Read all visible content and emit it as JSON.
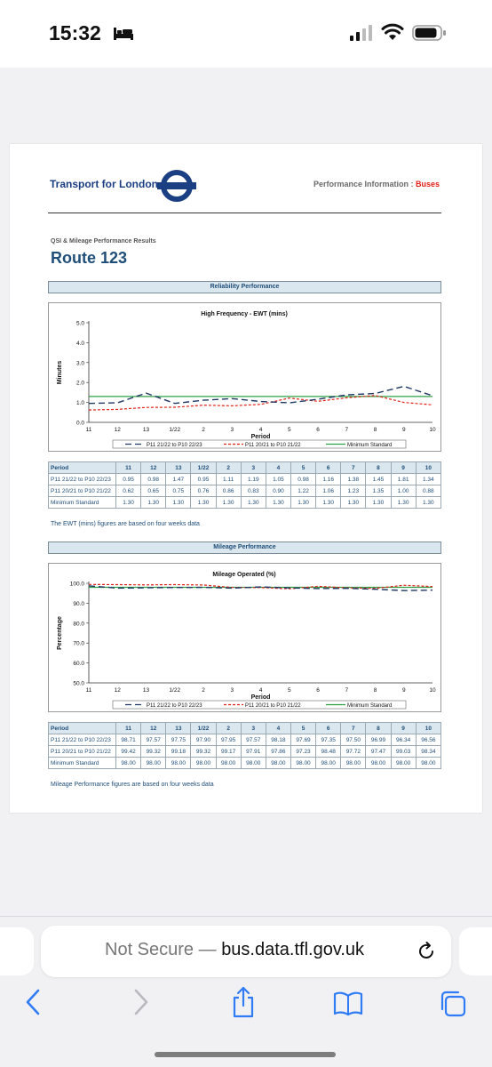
{
  "status_bar": {
    "time": "15:32"
  },
  "document": {
    "org_name": "Transport for London",
    "perf_info_prefix": "Performance Information : ",
    "perf_info_highlight": "Buses",
    "subtitle": "QSI & Mileage Performance Results",
    "route_title": "Route 123",
    "reliability_section": "Reliability Performance",
    "mileage_section": "Mileage Performance",
    "ewt_note": "The EWT (mins) figures are based on four weeks data",
    "mileage_note": "Mileage Performance figures are based on four weeks data"
  },
  "table_headers": [
    "Period",
    "11",
    "12",
    "13",
    "1/22",
    "2",
    "3",
    "4",
    "5",
    "6",
    "7",
    "8",
    "9",
    "10"
  ],
  "colors": {
    "series1": "#1f3864",
    "series2": "#e32017",
    "series3": "#2ea043",
    "tfl_blue": "#1b3f83",
    "accent_red": "#e32017"
  },
  "chart_data": [
    {
      "type": "line",
      "title": "High Frequency - EWT (mins)",
      "xlabel": "Period",
      "ylabel": "Minutes",
      "x": [
        "11",
        "12",
        "13",
        "1/22",
        "2",
        "3",
        "4",
        "5",
        "6",
        "7",
        "8",
        "9",
        "10"
      ],
      "ylim": [
        0,
        5
      ],
      "yticks": [
        "0.0",
        "1.0",
        "2.0",
        "3.0",
        "4.0",
        "5.0"
      ],
      "legend": "bottom",
      "grid": false,
      "series": [
        {
          "name": "P11 21/22 to P10 22/23",
          "style": "dashed",
          "color": "#1f3864",
          "values": [
            0.95,
            0.98,
            1.47,
            0.95,
            1.11,
            1.19,
            1.05,
            0.98,
            1.16,
            1.38,
            1.45,
            1.81,
            1.34
          ]
        },
        {
          "name": "P11 20/21 to P10 21/22",
          "style": "dotted",
          "color": "#e32017",
          "values": [
            0.62,
            0.65,
            0.75,
            0.76,
            0.86,
            0.83,
            0.9,
            1.22,
            1.06,
            1.23,
            1.35,
            1.0,
            0.88
          ]
        },
        {
          "name": "Minimum Standard",
          "style": "solid",
          "color": "#2ea043",
          "values": [
            1.3,
            1.3,
            1.3,
            1.3,
            1.3,
            1.3,
            1.3,
            1.3,
            1.3,
            1.3,
            1.3,
            1.3,
            1.3
          ]
        }
      ],
      "table": [
        {
          "label": "P11 21/22 to P10 22/23",
          "values": [
            "0.95",
            "0.98",
            "1.47",
            "0.95",
            "1.11",
            "1.19",
            "1.05",
            "0.98",
            "1.16",
            "1.38",
            "1.45",
            "1.81",
            "1.34"
          ]
        },
        {
          "label": "P11 20/21 to P10 21/22",
          "values": [
            "0.62",
            "0.65",
            "0.75",
            "0.76",
            "0.86",
            "0.83",
            "0.90",
            "1.22",
            "1.06",
            "1.23",
            "1.35",
            "1.00",
            "0.88"
          ]
        },
        {
          "label": "Minimum Standard",
          "values": [
            "1.30",
            "1.30",
            "1.30",
            "1.30",
            "1.30",
            "1.30",
            "1.30",
            "1.30",
            "1.30",
            "1.30",
            "1.30",
            "1.30",
            "1.30"
          ]
        }
      ]
    },
    {
      "type": "line",
      "title": "Mileage Operated (%)",
      "xlabel": "Period",
      "ylabel": "Percentage",
      "x": [
        "11",
        "12",
        "13",
        "1/22",
        "2",
        "3",
        "4",
        "5",
        "6",
        "7",
        "8",
        "9",
        "10"
      ],
      "ylim": [
        50,
        100
      ],
      "yticks": [
        "50.0",
        "60.0",
        "70.0",
        "80.0",
        "90.0",
        "100.0"
      ],
      "legend": "bottom",
      "grid": false,
      "series": [
        {
          "name": "P11 21/22 to P10 22/23",
          "style": "dashed",
          "color": "#1f3864",
          "values": [
            98.71,
            97.57,
            97.75,
            97.9,
            97.95,
            97.57,
            98.18,
            97.69,
            97.35,
            97.5,
            96.99,
            96.34,
            96.56
          ]
        },
        {
          "name": "P11 20/21 to P10 21/22",
          "style": "dotted",
          "color": "#e32017",
          "values": [
            99.42,
            99.32,
            99.18,
            99.32,
            99.17,
            97.91,
            97.86,
            97.23,
            98.48,
            97.72,
            97.47,
            99.03,
            98.34
          ]
        },
        {
          "name": "Minimum Standard",
          "style": "solid",
          "color": "#2ea043",
          "values": [
            98.0,
            98.0,
            98.0,
            98.0,
            98.0,
            98.0,
            98.0,
            98.0,
            98.0,
            98.0,
            98.0,
            98.0,
            98.0
          ]
        }
      ],
      "table": [
        {
          "label": "P11 21/22 to P10 22/23",
          "values": [
            "98.71",
            "97.57",
            "97.75",
            "97.90",
            "97.95",
            "97.57",
            "98.18",
            "97.69",
            "97.35",
            "97.50",
            "96.99",
            "96.34",
            "96.56"
          ]
        },
        {
          "label": "P11 20/21 to P10 21/22",
          "values": [
            "99.42",
            "99.32",
            "99.18",
            "99.32",
            "99.17",
            "97.91",
            "97.86",
            "97.23",
            "98.48",
            "97.72",
            "97.47",
            "99.03",
            "98.34"
          ]
        },
        {
          "label": "Minimum Standard",
          "values": [
            "98.00",
            "98.00",
            "98.00",
            "98.00",
            "98.00",
            "98.00",
            "98.00",
            "98.00",
            "98.00",
            "98.00",
            "98.00",
            "98.00",
            "98.00"
          ]
        }
      ]
    }
  ],
  "address_bar": {
    "security": "Not Secure",
    "separator": " — ",
    "domain": "bus.data.tfl.gov.uk"
  },
  "toolbar": {
    "icons": [
      "back-icon",
      "forward-icon",
      "share-icon",
      "bookmarks-icon",
      "tabs-icon"
    ]
  }
}
